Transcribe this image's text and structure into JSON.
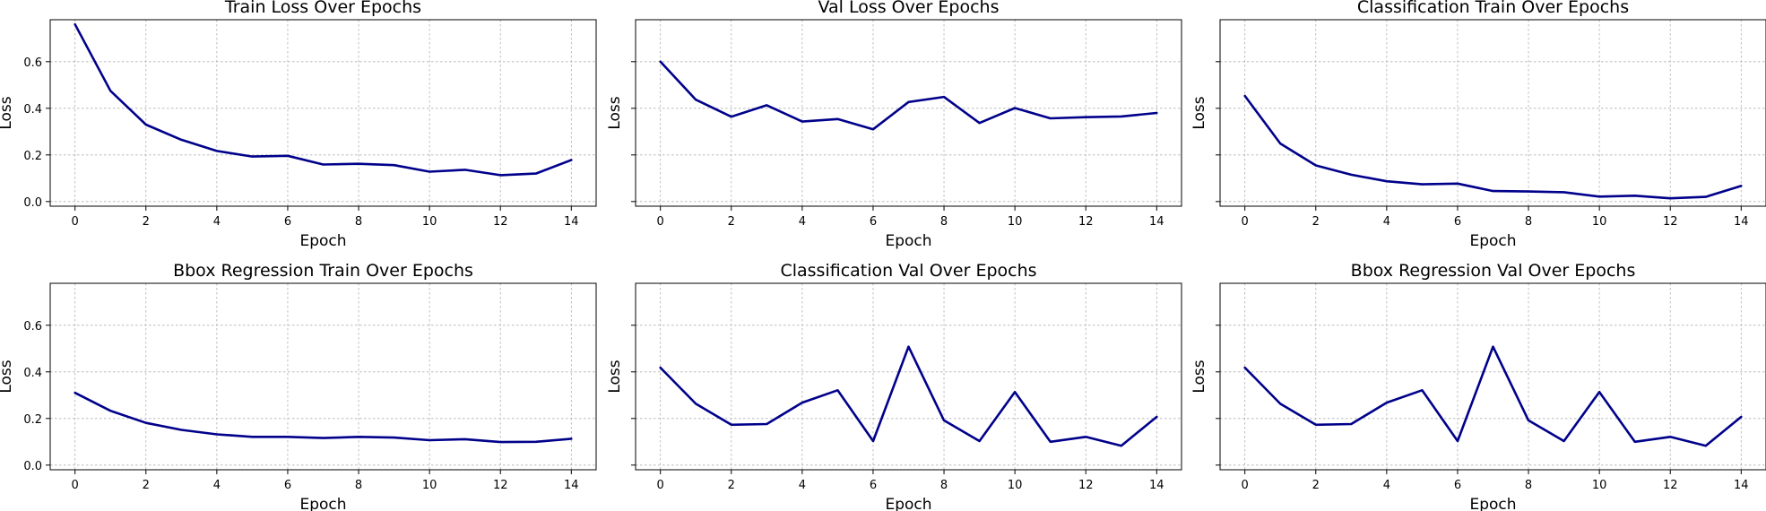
{
  "chart_data": [
    {
      "type": "line",
      "title": "Train Loss Over Epochs",
      "xlabel": "Epoch",
      "ylabel": "Loss",
      "xlim": [
        -0.7,
        14.7
      ],
      "ylim": [
        -0.02,
        0.78
      ],
      "grid": true,
      "xticks": [
        0,
        2,
        4,
        6,
        8,
        10,
        12,
        14
      ],
      "yticks": [
        0.0,
        0.2,
        0.4,
        0.6
      ],
      "ytick_labels": [
        "0.0",
        "0.2",
        "0.4",
        "0.6"
      ],
      "x": [
        0,
        1,
        2,
        3,
        4,
        5,
        6,
        7,
        8,
        9,
        10,
        11,
        12,
        13,
        14
      ],
      "values": [
        0.76,
        0.475,
        0.33,
        0.265,
        0.217,
        0.193,
        0.196,
        0.159,
        0.162,
        0.156,
        0.128,
        0.136,
        0.113,
        0.12,
        0.178
      ]
    },
    {
      "type": "line",
      "title": "Val Loss Over Epochs",
      "xlabel": "Epoch",
      "ylabel": "Loss",
      "xlim": [
        -0.7,
        14.7
      ],
      "ylim": [
        -0.02,
        0.78
      ],
      "grid": true,
      "xticks": [
        0,
        2,
        4,
        6,
        8,
        10,
        12,
        14
      ],
      "yticks": [
        0.0,
        0.2,
        0.4,
        0.6
      ],
      "ytick_labels": [
        "",
        "",
        "",
        ""
      ],
      "x": [
        0,
        1,
        2,
        3,
        4,
        5,
        6,
        7,
        8,
        9,
        10,
        11,
        12,
        13,
        14
      ],
      "values": [
        0.6,
        0.437,
        0.364,
        0.413,
        0.343,
        0.354,
        0.31,
        0.427,
        0.449,
        0.337,
        0.401,
        0.357,
        0.362,
        0.365,
        0.38
      ]
    },
    {
      "type": "line",
      "title": "Classification Train Over Epochs",
      "xlabel": "Epoch",
      "ylabel": "Loss",
      "xlim": [
        -0.7,
        14.7
      ],
      "ylim": [
        -0.02,
        0.78
      ],
      "grid": true,
      "xticks": [
        0,
        2,
        4,
        6,
        8,
        10,
        12,
        14
      ],
      "yticks": [
        0.0,
        0.2,
        0.4,
        0.6
      ],
      "ytick_labels": [
        "",
        "",
        "",
        ""
      ],
      "x": [
        0,
        1,
        2,
        3,
        4,
        5,
        6,
        7,
        8,
        9,
        10,
        11,
        12,
        13,
        14
      ],
      "values": [
        0.453,
        0.249,
        0.155,
        0.115,
        0.087,
        0.074,
        0.077,
        0.045,
        0.043,
        0.04,
        0.021,
        0.025,
        0.014,
        0.02,
        0.067
      ]
    },
    {
      "type": "line",
      "title": "Bbox Regression Train Over Epochs",
      "xlabel": "Epoch",
      "ylabel": "Loss",
      "xlim": [
        -0.7,
        14.7
      ],
      "ylim": [
        -0.02,
        0.78
      ],
      "grid": true,
      "xticks": [
        0,
        2,
        4,
        6,
        8,
        10,
        12,
        14
      ],
      "yticks": [
        0.0,
        0.2,
        0.4,
        0.6
      ],
      "ytick_labels": [
        "0.0",
        "0.2",
        "0.4",
        "0.6"
      ],
      "x": [
        0,
        1,
        2,
        3,
        4,
        5,
        6,
        7,
        8,
        9,
        10,
        11,
        12,
        13,
        14
      ],
      "values": [
        0.31,
        0.233,
        0.181,
        0.151,
        0.132,
        0.121,
        0.121,
        0.116,
        0.121,
        0.118,
        0.107,
        0.111,
        0.099,
        0.1,
        0.113
      ]
    },
    {
      "type": "line",
      "title": "Classification Val Over Epochs",
      "xlabel": "Epoch",
      "ylabel": "Loss",
      "xlim": [
        -0.7,
        14.7
      ],
      "ylim": [
        -0.02,
        0.78
      ],
      "grid": true,
      "xticks": [
        0,
        2,
        4,
        6,
        8,
        10,
        12,
        14
      ],
      "yticks": [
        0.0,
        0.2,
        0.4,
        0.6
      ],
      "ytick_labels": [
        "",
        "",
        "",
        ""
      ],
      "x": [
        0,
        1,
        2,
        3,
        4,
        5,
        6,
        7,
        8,
        9,
        10,
        11,
        12,
        13,
        14
      ],
      "values": [
        0.418,
        0.263,
        0.173,
        0.176,
        0.268,
        0.321,
        0.103,
        0.508,
        0.192,
        0.103,
        0.314,
        0.1,
        0.121,
        0.083,
        0.207
      ]
    },
    {
      "type": "line",
      "title": "Bbox Regression Val Over Epochs",
      "xlabel": "Epoch",
      "ylabel": "Loss",
      "xlim": [
        -0.7,
        14.7
      ],
      "ylim": [
        -0.02,
        0.78
      ],
      "grid": true,
      "xticks": [
        0,
        2,
        4,
        6,
        8,
        10,
        12,
        14
      ],
      "yticks": [
        0.0,
        0.2,
        0.4,
        0.6
      ],
      "ytick_labels": [
        "",
        "",
        "",
        ""
      ],
      "x": [
        0,
        1,
        2,
        3,
        4,
        5,
        6,
        7,
        8,
        9,
        10,
        11,
        12,
        13,
        14
      ],
      "values": [
        0.418,
        0.263,
        0.173,
        0.176,
        0.268,
        0.321,
        0.103,
        0.508,
        0.192,
        0.103,
        0.314,
        0.1,
        0.121,
        0.083,
        0.207
      ]
    }
  ],
  "style": {
    "line_color": "#00008b",
    "grid_color": "#b0b0b0"
  }
}
